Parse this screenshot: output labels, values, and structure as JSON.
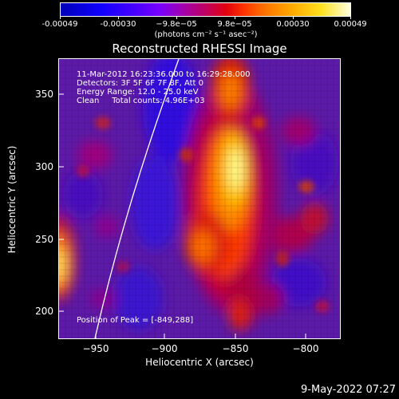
{
  "colorbar": {
    "tick_labels": [
      "-0.00049",
      "-0.00030",
      "−9.8e−05",
      "9.8e−05",
      "0.00030",
      "0.00049"
    ],
    "units": "(photons cm⁻² s⁻¹ asec⁻²)"
  },
  "title": "Reconstructed RHESSI Image",
  "annotations": {
    "line1": "11-Mar-2012 16:23:36.000 to 16:29:28.000",
    "line2": "Detectors: 3F 5F 6F 7F 8F, Att 0",
    "line3": "Energy Range: 12.0 - 25.0 keV",
    "line4": "Clean     Total counts: 4.96E+03",
    "peak": "Position of Peak = [-849,288]"
  },
  "axes": {
    "xlabel": "Heliocentric X (arcsec)",
    "ylabel": "Heliocentric Y (arcsec)",
    "x_ticks": [
      "−950",
      "−900",
      "−850",
      "−800"
    ],
    "y_ticks": [
      "350",
      "300",
      "250",
      "200"
    ]
  },
  "datestamp": "9-May-2022 07:27"
}
